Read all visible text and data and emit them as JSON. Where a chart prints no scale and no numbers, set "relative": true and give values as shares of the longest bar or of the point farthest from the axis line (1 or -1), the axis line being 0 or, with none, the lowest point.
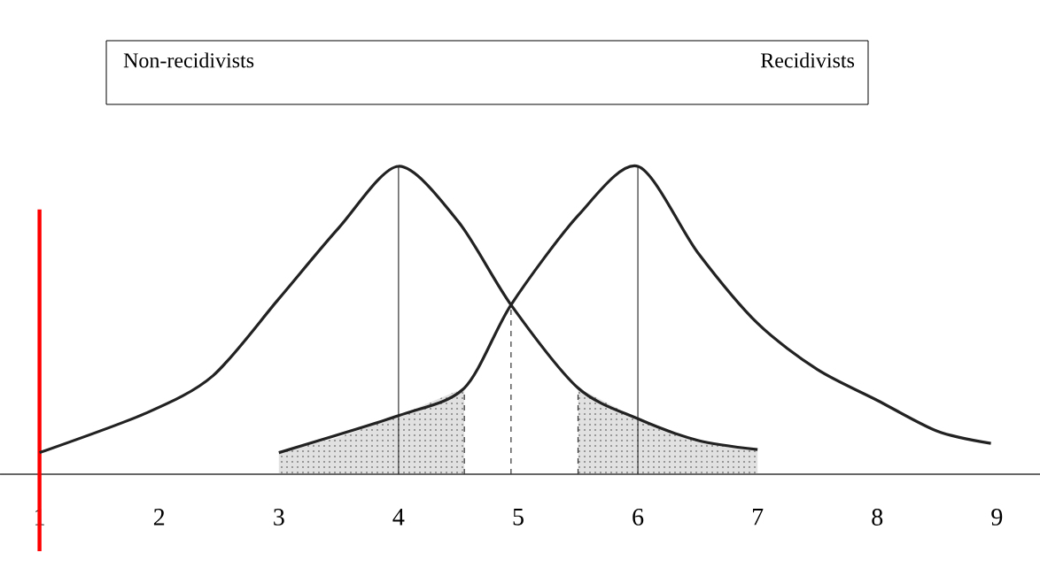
{
  "chart_data": {
    "type": "line",
    "relative": true,
    "annotations": [
      "Non-recidivists",
      "Recidivists"
    ],
    "marker": "none",
    "line_style": "solid",
    "xlim": [
      0.67,
      9.36
    ],
    "xticks": [
      1,
      2,
      3,
      4,
      5,
      6,
      7,
      8,
      9
    ],
    "series": [
      {
        "color": "#222222",
        "x": [
          1.0,
          1.9,
          2.45,
          3.0,
          3.5,
          4.0,
          4.5,
          4.94,
          5.5,
          6.0,
          6.5,
          7.0
        ],
        "values": [
          0.07,
          0.2,
          0.32,
          0.57,
          0.8,
          1.0,
          0.82,
          0.55,
          0.28,
          0.18,
          0.11,
          0.08
        ]
      },
      {
        "color": "#222222",
        "x": [
          3.0,
          4.0,
          4.55,
          4.94,
          5.5,
          6.0,
          6.5,
          7.0,
          7.5,
          8.0,
          8.5,
          8.95
        ],
        "values": [
          0.07,
          0.19,
          0.28,
          0.55,
          0.84,
          1.0,
          0.72,
          0.49,
          0.34,
          0.24,
          0.14,
          0.1
        ]
      },
      {
        "type": "area",
        "color": "#888888",
        "x": [
          3.0,
          3.5,
          4.0,
          4.55
        ],
        "values": [
          0.07,
          0.12,
          0.19,
          0.28
        ]
      },
      {
        "type": "area",
        "color": "#888888",
        "x": [
          5.5,
          6.0,
          6.5,
          7.0
        ],
        "values": [
          0.28,
          0.18,
          0.11,
          0.08
        ]
      }
    ],
    "ref_lines": [
      {
        "axis": "x",
        "value": 1,
        "color": "#ff0000",
        "line_style": "solid"
      },
      {
        "axis": "x",
        "value": 4,
        "line_style": "solid"
      },
      {
        "axis": "x",
        "value": 6,
        "line_style": "solid"
      },
      {
        "axis": "x",
        "value": 4.55,
        "line_style": "dashed"
      },
      {
        "axis": "x",
        "value": 4.94,
        "line_style": "dashed"
      },
      {
        "axis": "x",
        "value": 5.5,
        "line_style": "dashed"
      }
    ]
  }
}
